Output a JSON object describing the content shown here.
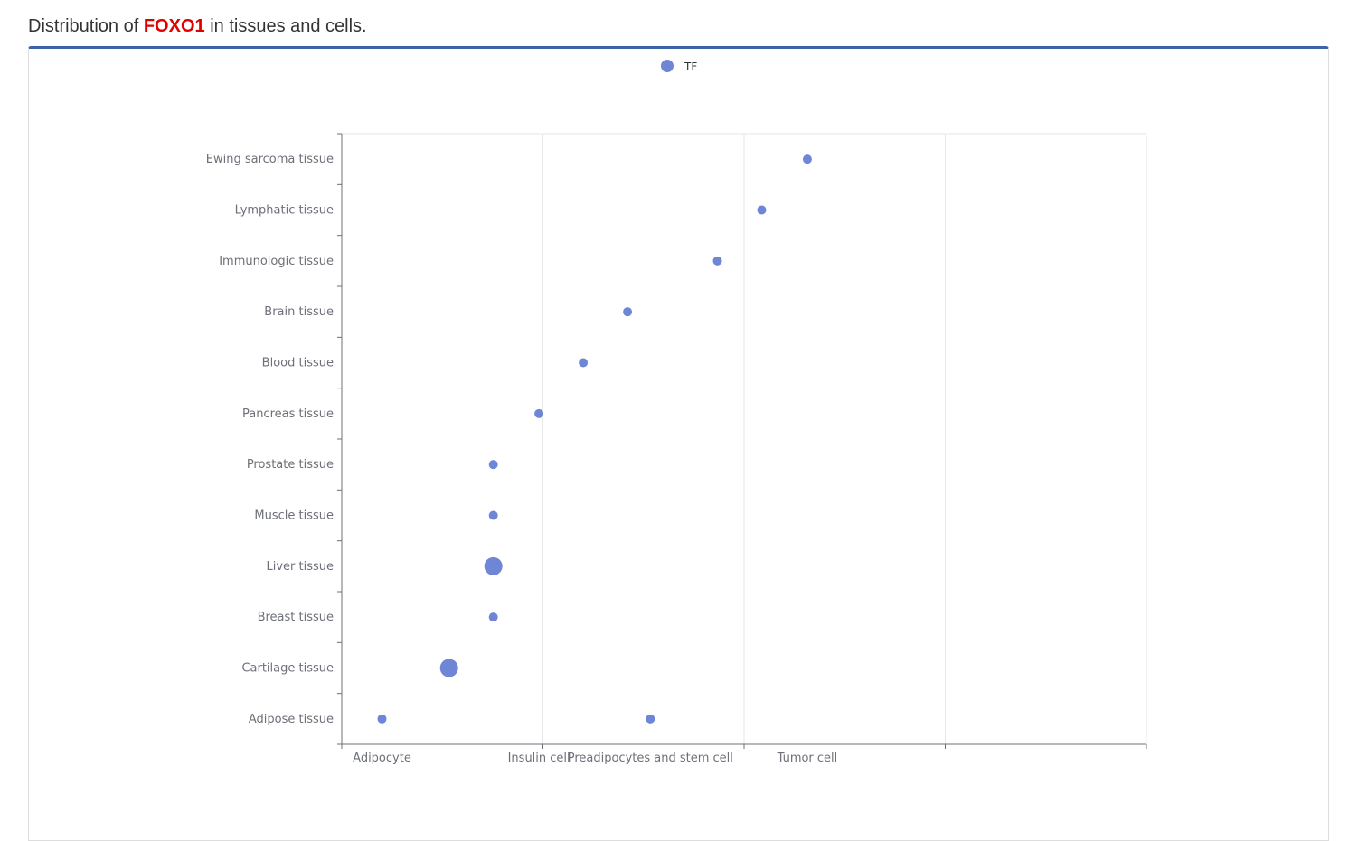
{
  "heading": {
    "prefix": "Distribution of ",
    "gene": "FOXO1",
    "suffix": " in tissues and cells."
  },
  "colors": {
    "accent_bar": "#3b63a5",
    "gene_highlight": "#e00000",
    "point": "#6f86d6"
  },
  "chart_data": {
    "type": "scatter",
    "title": "",
    "legend": {
      "entries": [
        "TF"
      ],
      "position": "top-center"
    },
    "x_categories": [
      "Adipocyte",
      "Insulin cell",
      "Preadipocytes and stem cell",
      "Tumor cell"
    ],
    "x_tick_labels": [
      "Adipocyte",
      "Insulin cell",
      "Preadipocytes and stem cell",
      "Tumor cell"
    ],
    "y_categories": [
      "Adipose tissue",
      "Cartilage tissue",
      "Breast tissue",
      "Liver tissue",
      "Muscle tissue",
      "Prostate tissue",
      "Pancreas tissue",
      "Blood tissue",
      "Brain tissue",
      "Immunologic tissue",
      "Lymphatic tissue",
      "Ewing sarcoma tissue"
    ],
    "grid": true,
    "series": [
      {
        "name": "TF",
        "points": [
          {
            "x": 0.0,
            "y": "Adipose tissue",
            "size": 1
          },
          {
            "x": 2.0,
            "y": "Adipose tissue",
            "size": 1
          },
          {
            "x": 0.5,
            "y": "Cartilage tissue",
            "size": 2
          },
          {
            "x": 0.83,
            "y": "Breast tissue",
            "size": 1
          },
          {
            "x": 0.83,
            "y": "Liver tissue",
            "size": 2
          },
          {
            "x": 0.83,
            "y": "Muscle tissue",
            "size": 1
          },
          {
            "x": 0.83,
            "y": "Prostate tissue",
            "size": 1
          },
          {
            "x": 1.17,
            "y": "Pancreas tissue",
            "size": 1
          },
          {
            "x": 1.5,
            "y": "Blood tissue",
            "size": 1
          },
          {
            "x": 1.83,
            "y": "Brain tissue",
            "size": 1
          },
          {
            "x": 2.5,
            "y": "Immunologic tissue",
            "size": 1
          },
          {
            "x": 2.83,
            "y": "Lymphatic tissue",
            "size": 1
          },
          {
            "x": 3.17,
            "y": "Ewing sarcoma tissue",
            "size": 1
          }
        ]
      }
    ]
  }
}
